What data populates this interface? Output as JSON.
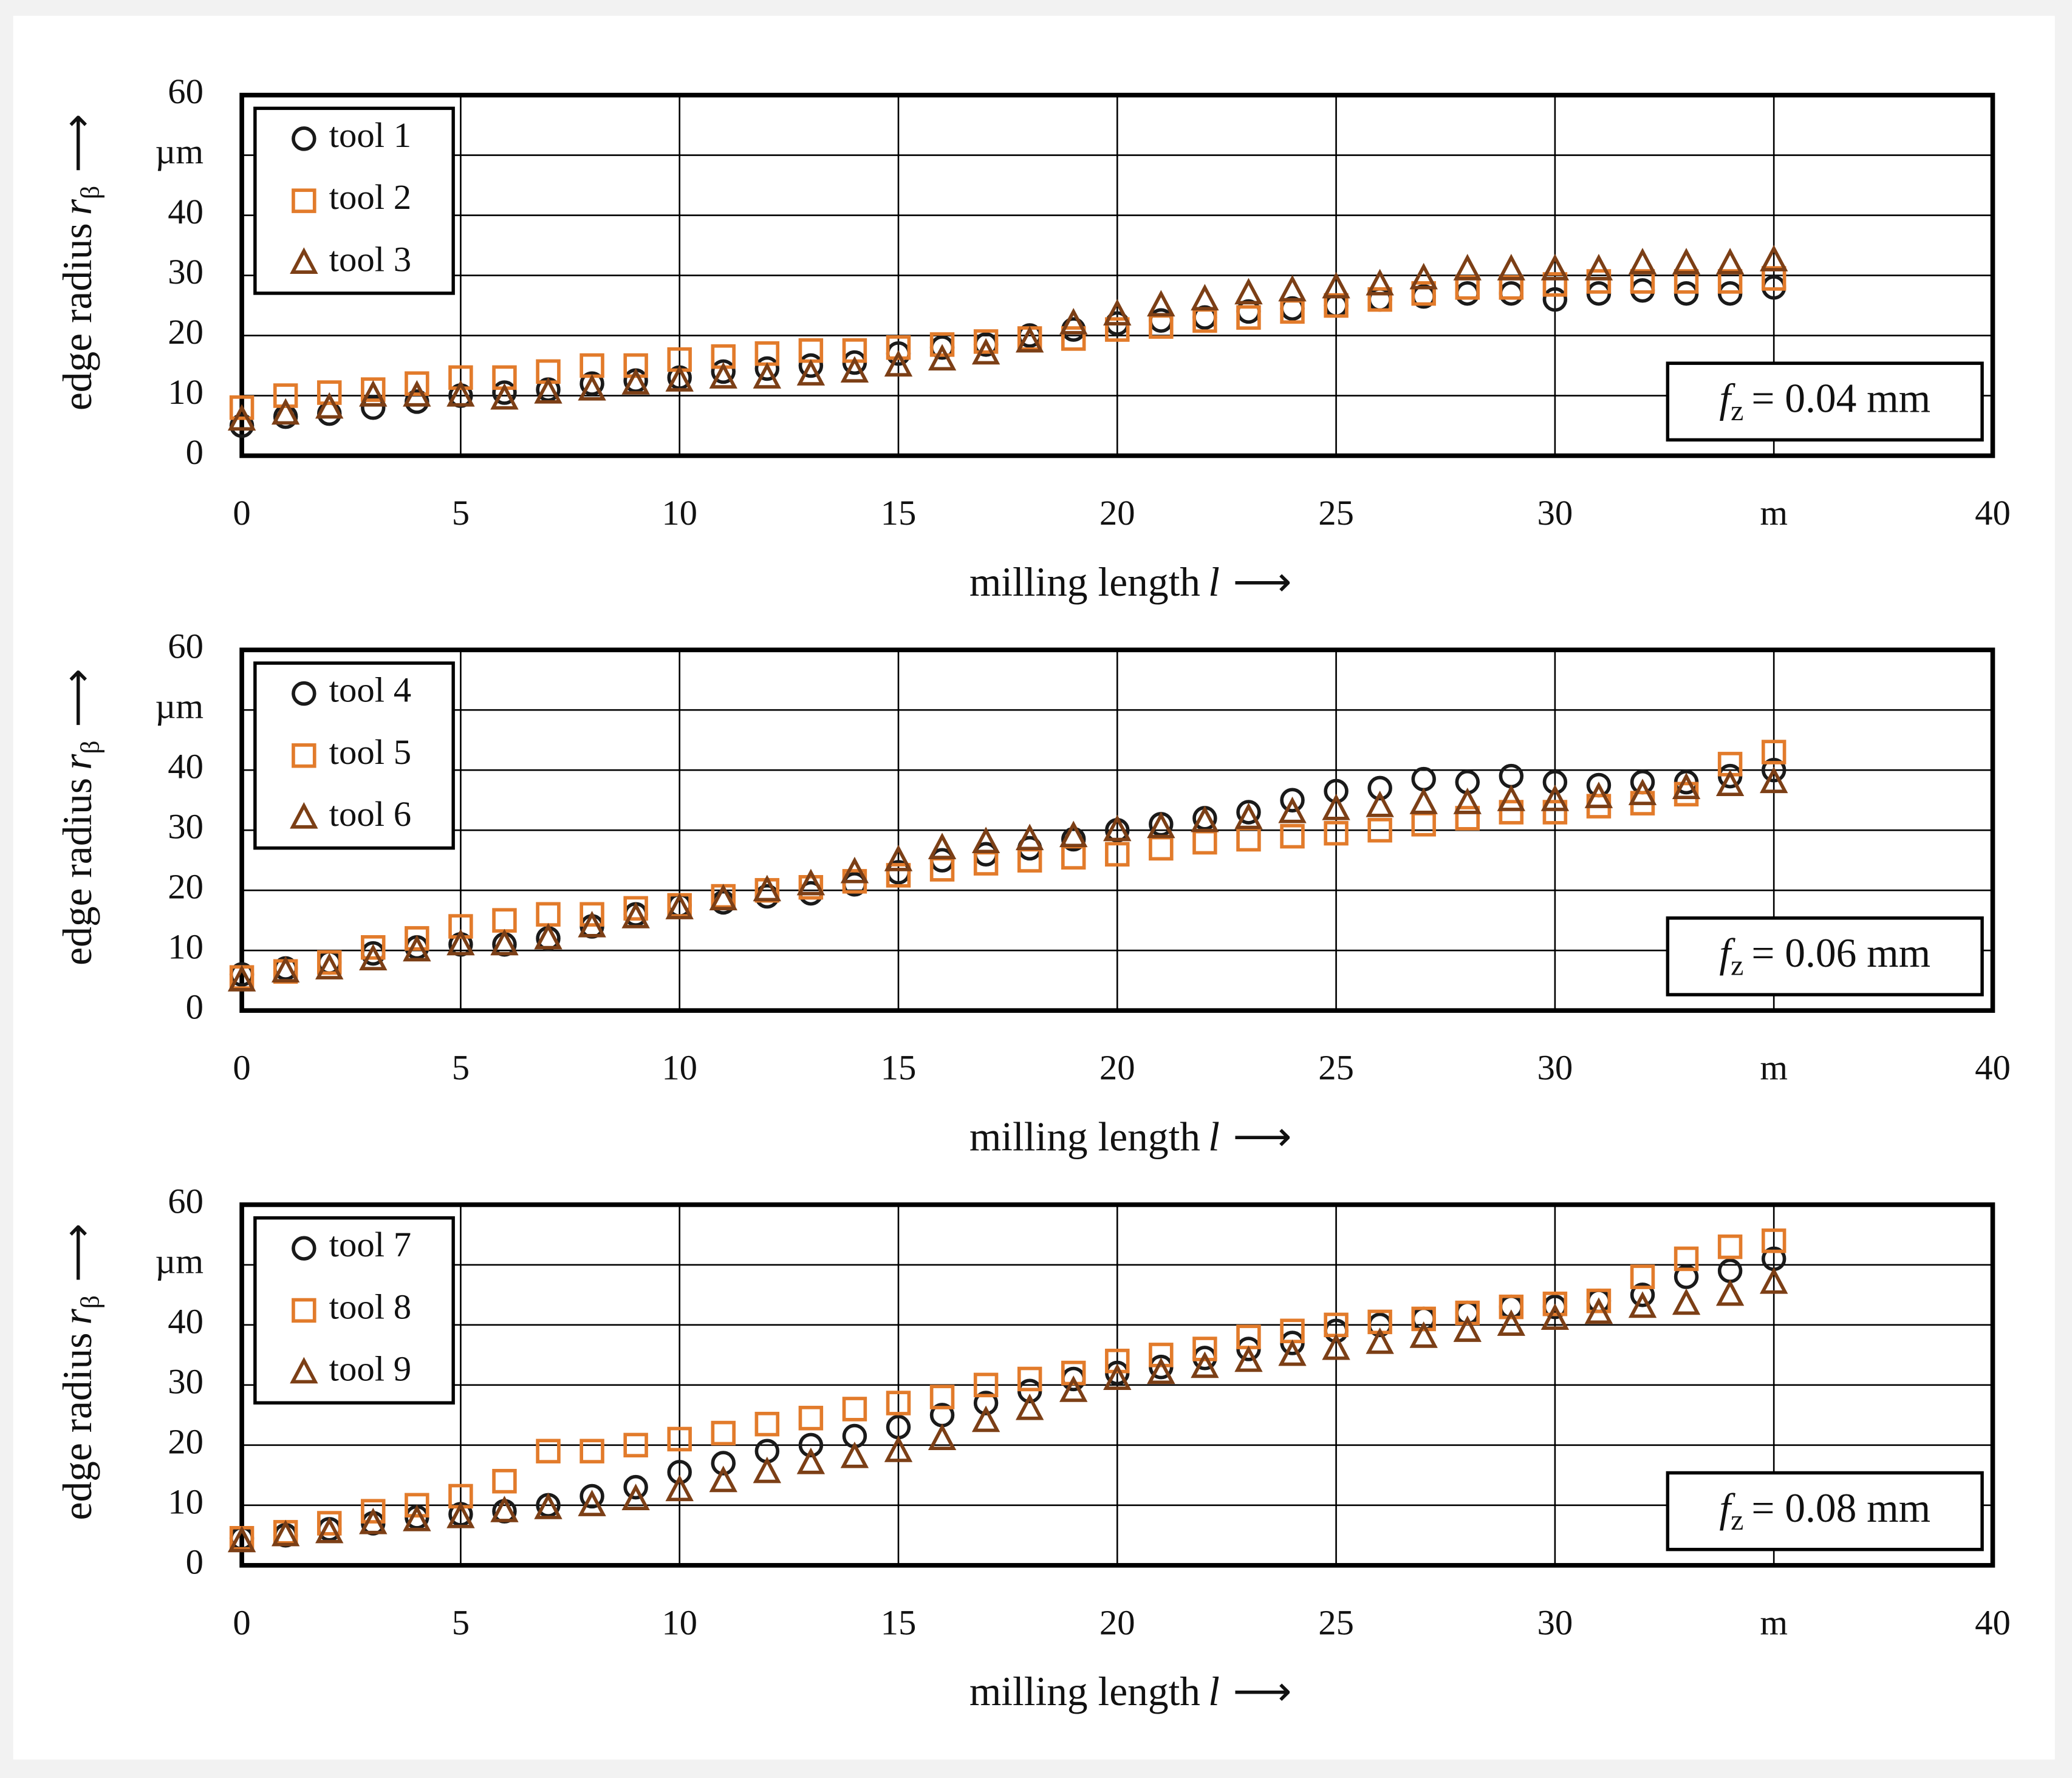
{
  "chart_data": [
    {
      "type": "scatter",
      "x": [
        0,
        1,
        2,
        3,
        4,
        5,
        6,
        7,
        8,
        9,
        10,
        11,
        12,
        13,
        14,
        15,
        16,
        17,
        18,
        19,
        20,
        21,
        22,
        23,
        24,
        25,
        26,
        27,
        28,
        29,
        30,
        31,
        32,
        33,
        34,
        35
      ],
      "series": [
        {
          "name": "tool 1",
          "color": "#1a1a1a",
          "marker": "circle",
          "values": [
            5,
            6.5,
            7,
            8,
            9,
            10,
            10.5,
            11,
            12,
            12.5,
            13,
            14,
            14.5,
            15,
            15.5,
            17,
            18,
            18.5,
            20,
            21,
            22,
            22.5,
            23,
            24,
            24.5,
            25,
            26,
            26.5,
            27,
            27,
            26,
            27,
            27.5,
            27,
            27,
            28
          ]
        },
        {
          "name": "tool 2",
          "color": "#e27b2b",
          "marker": "square",
          "values": [
            8,
            10,
            10.5,
            11,
            12,
            13,
            13,
            14,
            15,
            15,
            16,
            16.5,
            17,
            17.5,
            17.5,
            18,
            18.5,
            19,
            19.5,
            19.5,
            21,
            21.5,
            22.5,
            23,
            24,
            25,
            26,
            27,
            28,
            28,
            28.5,
            29,
            29,
            29,
            29,
            29.5
          ]
        },
        {
          "name": "tool 3",
          "color": "#7c3f16",
          "marker": "triangle",
          "values": [
            6,
            7,
            8,
            10,
            10,
            10,
            9.5,
            10.5,
            11,
            12,
            12.5,
            13,
            13,
            13.5,
            14,
            15,
            16,
            17,
            19,
            22,
            23.5,
            25,
            26,
            27,
            27.5,
            28,
            28.5,
            29.5,
            31,
            31,
            31,
            31,
            32,
            32,
            32,
            32.5
          ]
        }
      ],
      "xlim": [
        0,
        40
      ],
      "ylim": [
        0,
        60
      ],
      "xticks": [
        0,
        5,
        10,
        15,
        20,
        25,
        30,
        {
          "value": 35,
          "label": "m"
        },
        40
      ],
      "yticks": [
        0,
        10,
        20,
        30,
        40,
        {
          "value": 50,
          "label": "µm"
        },
        60
      ],
      "xlabel": {
        "text": "milling length",
        "symbol": "l",
        "arrow": "⟶"
      },
      "ylabel": {
        "text": "edge radius",
        "symbol": "r",
        "subscript": "β",
        "arrow": "⟶"
      },
      "annotation": {
        "symbol": "f",
        "subscript": "z",
        "text": "= 0.04 mm"
      },
      "grid": true,
      "legend": "upper left"
    },
    {
      "type": "scatter",
      "x": [
        0,
        1,
        2,
        3,
        4,
        5,
        6,
        7,
        8,
        9,
        10,
        11,
        12,
        13,
        14,
        15,
        16,
        17,
        18,
        19,
        20,
        21,
        22,
        23,
        24,
        25,
        26,
        27,
        28,
        29,
        30,
        31,
        32,
        33,
        34,
        35
      ],
      "series": [
        {
          "name": "tool 4",
          "color": "#1a1a1a",
          "marker": "circle",
          "values": [
            6,
            7,
            8,
            9.5,
            10.5,
            11,
            11,
            12,
            14,
            16,
            17.5,
            18,
            19,
            19.5,
            21,
            23,
            25,
            26,
            27,
            28.5,
            30,
            31,
            32,
            33,
            35,
            36.5,
            37,
            38.5,
            38,
            39,
            38,
            37.5,
            38,
            38,
            39,
            40
          ]
        },
        {
          "name": "tool 5",
          "color": "#e27b2b",
          "marker": "square",
          "values": [
            5.5,
            6.5,
            8,
            10.5,
            12,
            14,
            15,
            16,
            16,
            17,
            17.5,
            19,
            20,
            20.5,
            21.5,
            22.5,
            23.5,
            24.5,
            25,
            25.5,
            26,
            27,
            28,
            28.5,
            29,
            29.5,
            30,
            31,
            32,
            33,
            33,
            34,
            34.5,
            36,
            41,
            43
          ]
        },
        {
          "name": "tool 6",
          "color": "#7c3f16",
          "marker": "triangle",
          "values": [
            5,
            6.5,
            7,
            8.5,
            10,
            11,
            11,
            12,
            14,
            15.5,
            17,
            18.5,
            20,
            21,
            23,
            25,
            27,
            28,
            28.5,
            29,
            30,
            30.5,
            31.5,
            32,
            33,
            33.5,
            34,
            34.5,
            34.5,
            35,
            35,
            35.5,
            36,
            37,
            37.5,
            38
          ]
        }
      ],
      "xlim": [
        0,
        40
      ],
      "ylim": [
        0,
        60
      ],
      "xticks": [
        0,
        5,
        10,
        15,
        20,
        25,
        30,
        {
          "value": 35,
          "label": "m"
        },
        40
      ],
      "yticks": [
        0,
        10,
        20,
        30,
        40,
        {
          "value": 50,
          "label": "µm"
        },
        60
      ],
      "xlabel": {
        "text": "milling length",
        "symbol": "l",
        "arrow": "⟶"
      },
      "ylabel": {
        "text": "edge radius",
        "symbol": "r",
        "subscript": "β",
        "arrow": "⟶"
      },
      "annotation": {
        "symbol": "f",
        "subscript": "z",
        "text": "= 0.06 mm"
      },
      "grid": true,
      "legend": "upper left"
    },
    {
      "type": "scatter",
      "x": [
        0,
        1,
        2,
        3,
        4,
        5,
        6,
        7,
        8,
        9,
        10,
        11,
        12,
        13,
        14,
        15,
        16,
        17,
        18,
        19,
        20,
        21,
        22,
        23,
        24,
        25,
        26,
        27,
        28,
        29,
        30,
        31,
        32,
        33,
        34,
        35
      ],
      "series": [
        {
          "name": "tool 7",
          "color": "#1a1a1a",
          "marker": "circle",
          "values": [
            4.5,
            5,
            6,
            7,
            8,
            8.5,
            9,
            10,
            11.5,
            13,
            15.5,
            17,
            19,
            20,
            21.5,
            23,
            25,
            27,
            29,
            31,
            32,
            33,
            34.5,
            36,
            37,
            39,
            40,
            41,
            42,
            43,
            43,
            44,
            45,
            48,
            49,
            51
          ]
        },
        {
          "name": "tool 8",
          "color": "#e27b2b",
          "marker": "square",
          "values": [
            4.5,
            5.5,
            7,
            9,
            10,
            11.5,
            14,
            19,
            19,
            20,
            21,
            22,
            23.5,
            24.5,
            26,
            27,
            28,
            30,
            31,
            32,
            34,
            35,
            36,
            38,
            39,
            40,
            40.5,
            41,
            42,
            43,
            43.5,
            44,
            48,
            51,
            53,
            54
          ]
        },
        {
          "name": "tool 9",
          "color": "#7c3f16",
          "marker": "triangle",
          "values": [
            4,
            5,
            5.5,
            7,
            7.5,
            8,
            9,
            9.5,
            10,
            11,
            12.5,
            14,
            15.5,
            17,
            18,
            19,
            21,
            24,
            26,
            29,
            31,
            32,
            33,
            34,
            35,
            36,
            37,
            38,
            39,
            40,
            41,
            42,
            43,
            43.5,
            45,
            47
          ]
        }
      ],
      "xlim": [
        0,
        40
      ],
      "ylim": [
        0,
        60
      ],
      "xticks": [
        0,
        5,
        10,
        15,
        20,
        25,
        30,
        {
          "value": 35,
          "label": "m"
        },
        40
      ],
      "yticks": [
        0,
        10,
        20,
        30,
        40,
        {
          "value": 50,
          "label": "µm"
        },
        60
      ],
      "xlabel": {
        "text": "milling length",
        "symbol": "l",
        "arrow": "⟶"
      },
      "ylabel": {
        "text": "edge radius",
        "symbol": "r",
        "subscript": "β",
        "arrow": "⟶"
      },
      "annotation": {
        "symbol": "f",
        "subscript": "z",
        "text": "= 0.08 mm"
      },
      "grid": true,
      "legend": "upper left"
    }
  ]
}
